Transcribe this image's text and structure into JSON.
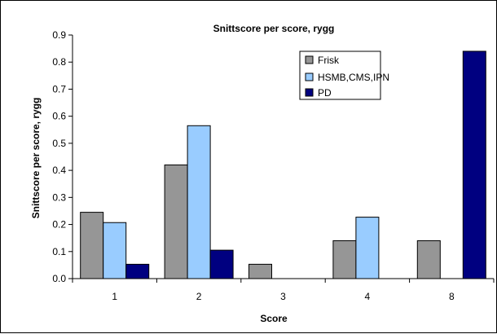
{
  "chart_data": {
    "type": "bar",
    "title": "Snittscore per score, rygg",
    "xlabel": "Score",
    "ylabel": "Snittscore per score, rygg",
    "categories": [
      "1",
      "2",
      "3",
      "4",
      "8"
    ],
    "series": [
      {
        "name": "Frisk",
        "color": "#969696",
        "values": [
          0.245,
          0.42,
          0.053,
          0.14,
          0.14
        ]
      },
      {
        "name": "HSMB,CMS,IPN",
        "color": "#99CCFF",
        "values": [
          0.207,
          0.565,
          0,
          0.227,
          0
        ]
      },
      {
        "name": "PD",
        "color": "#000080",
        "values": [
          0.053,
          0.105,
          0,
          0,
          0.84
        ]
      }
    ],
    "ylim": [
      0,
      0.9
    ],
    "yticks": [
      "0.0",
      "0.1",
      "0.2",
      "0.3",
      "0.4",
      "0.5",
      "0.6",
      "0.7",
      "0.8",
      "0.9"
    ],
    "grid": false,
    "legend_position": "top-right"
  }
}
